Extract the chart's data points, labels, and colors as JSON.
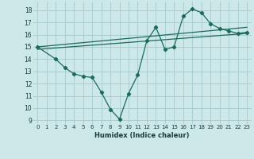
{
  "xlabel": "Humidex (Indice chaleur)",
  "bg_color": "#cce8e8",
  "grid_color": "#aacece",
  "line_color": "#1a6b5a",
  "xlim": [
    -0.5,
    23.5
  ],
  "ylim": [
    8.7,
    18.7
  ],
  "yticks": [
    9,
    10,
    11,
    12,
    13,
    14,
    15,
    16,
    17,
    18
  ],
  "xticks": [
    0,
    1,
    2,
    3,
    4,
    5,
    6,
    7,
    8,
    9,
    10,
    11,
    12,
    13,
    14,
    15,
    16,
    17,
    18,
    19,
    20,
    21,
    22,
    23
  ],
  "line1_x": [
    0,
    2,
    3,
    4,
    5,
    6,
    7,
    8,
    9,
    10,
    11,
    12,
    13,
    14,
    15,
    16,
    17,
    18,
    19,
    20,
    21,
    22,
    23
  ],
  "line1_y": [
    15.0,
    14.0,
    13.3,
    12.8,
    12.6,
    12.5,
    11.3,
    9.9,
    9.1,
    11.2,
    12.7,
    15.5,
    16.6,
    14.8,
    15.0,
    17.5,
    18.1,
    17.8,
    16.9,
    16.5,
    16.3,
    16.1,
    16.2
  ],
  "line2_x": [
    0,
    23
  ],
  "line2_y": [
    15.0,
    16.6
  ],
  "line3_x": [
    0,
    23
  ],
  "line3_y": [
    14.8,
    16.1
  ]
}
